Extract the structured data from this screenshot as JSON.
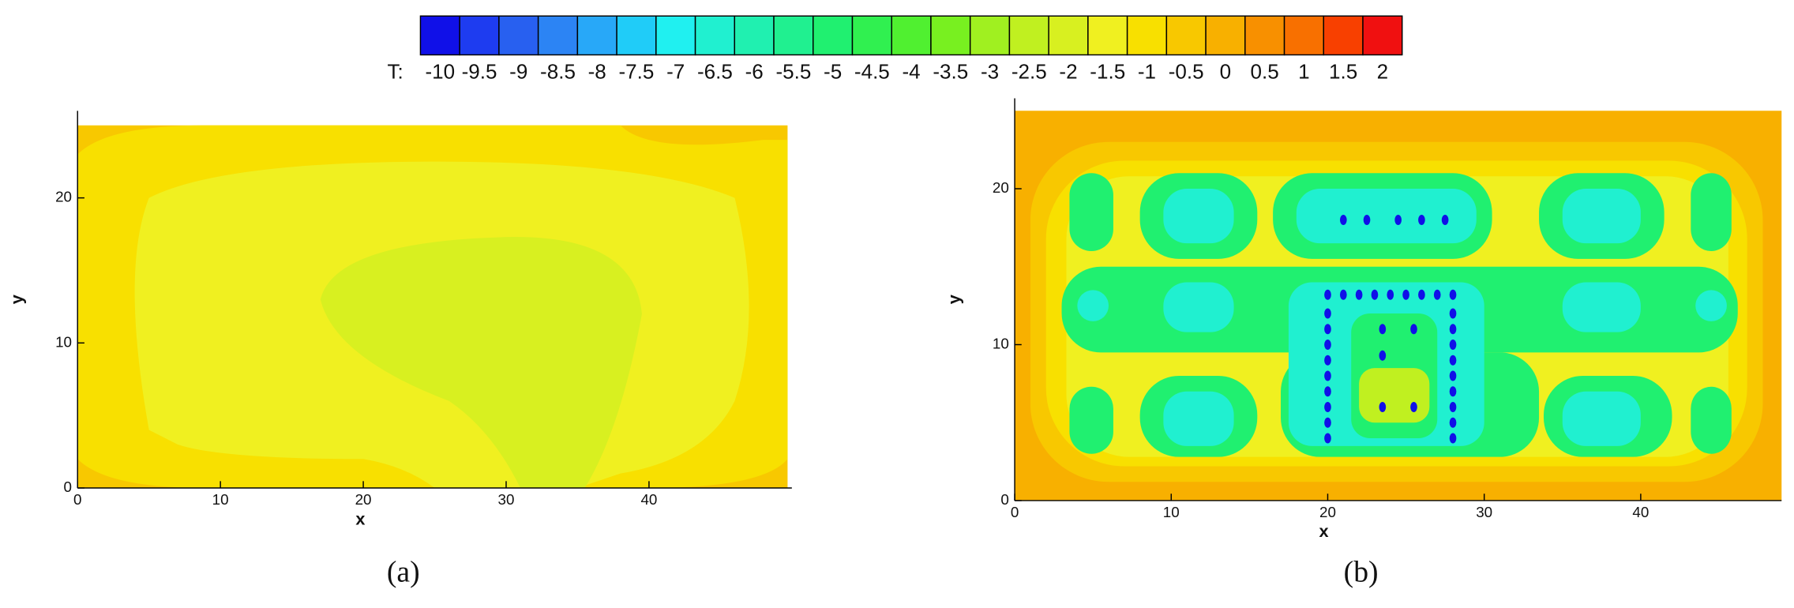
{
  "colorbar": {
    "label": "T:",
    "levels": [
      -10,
      -9.5,
      -9,
      -8.5,
      -8,
      -7.5,
      -7,
      -6.5,
      -6,
      -5.5,
      -5,
      -4.5,
      -4,
      -3.5,
      -3,
      -2.5,
      -2,
      -1.5,
      -1,
      -0.5,
      0,
      0.5,
      1,
      1.5,
      2
    ],
    "colors": [
      "#1010e8",
      "#1e3cf0",
      "#2860f0",
      "#2c84f4",
      "#28a8f8",
      "#20ccf8",
      "#20f0f0",
      "#20f0d0",
      "#20f0b0",
      "#20f090",
      "#20f070",
      "#30f050",
      "#50f030",
      "#78f020",
      "#a0f020",
      "#c0f020",
      "#d8f020",
      "#f0f020",
      "#f8e000",
      "#f8c800",
      "#f8b000",
      "#f89000",
      "#f87000",
      "#f84000",
      "#f01010"
    ]
  },
  "chart_data": [
    {
      "type": "contour",
      "caption": "(a)",
      "xlabel": "x",
      "ylabel": "y",
      "xlim": [
        0,
        50
      ],
      "ylim": [
        0,
        26
      ],
      "xticks": [
        0,
        10,
        20,
        30,
        40
      ],
      "yticks": [
        0,
        10,
        20
      ]
    },
    {
      "type": "contour",
      "caption": "(b)",
      "xlabel": "x",
      "ylabel": "y",
      "xlim": [
        0,
        49
      ],
      "ylim": [
        0,
        25.8
      ],
      "xticks": [
        0,
        10,
        20,
        30,
        40
      ],
      "yticks": [
        0,
        10,
        20
      ]
    }
  ]
}
